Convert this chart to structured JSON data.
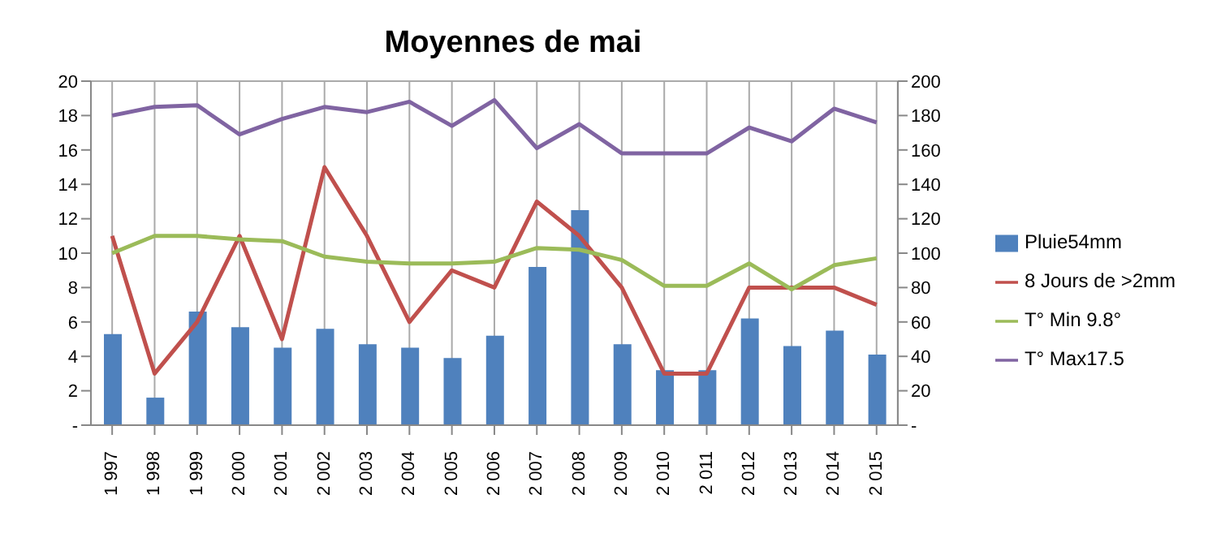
{
  "chart_data": {
    "type": "bar",
    "title": "Moyennes de mai",
    "categories": [
      "1 997",
      "1 998",
      "1 999",
      "2 000",
      "2 001",
      "2 002",
      "2 003",
      "2 004",
      "2 005",
      "2 006",
      "2 007",
      "2 008",
      "2 009",
      "2 010",
      "2 011",
      "2 012",
      "2 013",
      "2 014",
      "2 015"
    ],
    "series": [
      {
        "name": "Pluie54mm",
        "axis": "y2",
        "color": "#4f81bd",
        "values": [
          53,
          16,
          66,
          57,
          45,
          56,
          47,
          45,
          39,
          52,
          92,
          125,
          47,
          32,
          32,
          62,
          46,
          55,
          41
        ]
      },
      {
        "name": "8 Jours de >2mm",
        "type": "line",
        "color": "#c0504d",
        "values": [
          11,
          3,
          6,
          11,
          5,
          15,
          11,
          6,
          9,
          8,
          13,
          11,
          8,
          3,
          3,
          8,
          8,
          8,
          7
        ]
      },
      {
        "name": "T° Min 9.8°",
        "type": "line",
        "color": "#9bbb59",
        "values": [
          10,
          11,
          11,
          10.8,
          10.7,
          9.8,
          9.5,
          9.4,
          9.4,
          9.5,
          10.3,
          10.2,
          9.6,
          8.1,
          8.1,
          9.4,
          7.9,
          9.3,
          9.7
        ]
      },
      {
        "name": "T° Max17.5",
        "type": "line",
        "color": "#8064a2",
        "values": [
          18,
          18.5,
          18.6,
          16.9,
          17.8,
          18.5,
          18.2,
          18.8,
          17.4,
          18.9,
          16.1,
          17.5,
          15.8,
          15.8,
          15.8,
          17.3,
          16.5,
          18.4,
          17.6
        ]
      }
    ],
    "ylim": [
      0,
      20
    ],
    "yticks": [
      {
        "value": 0,
        "label": "-"
      },
      2,
      4,
      6,
      8,
      10,
      12,
      14,
      16,
      18,
      20
    ],
    "y2lim": [
      0,
      200
    ],
    "y2ticks": [
      {
        "value": 0,
        "label": "-"
      },
      20,
      40,
      60,
      80,
      100,
      120,
      140,
      160,
      180,
      200
    ],
    "grid": true,
    "legend": "right",
    "marker": "none"
  }
}
